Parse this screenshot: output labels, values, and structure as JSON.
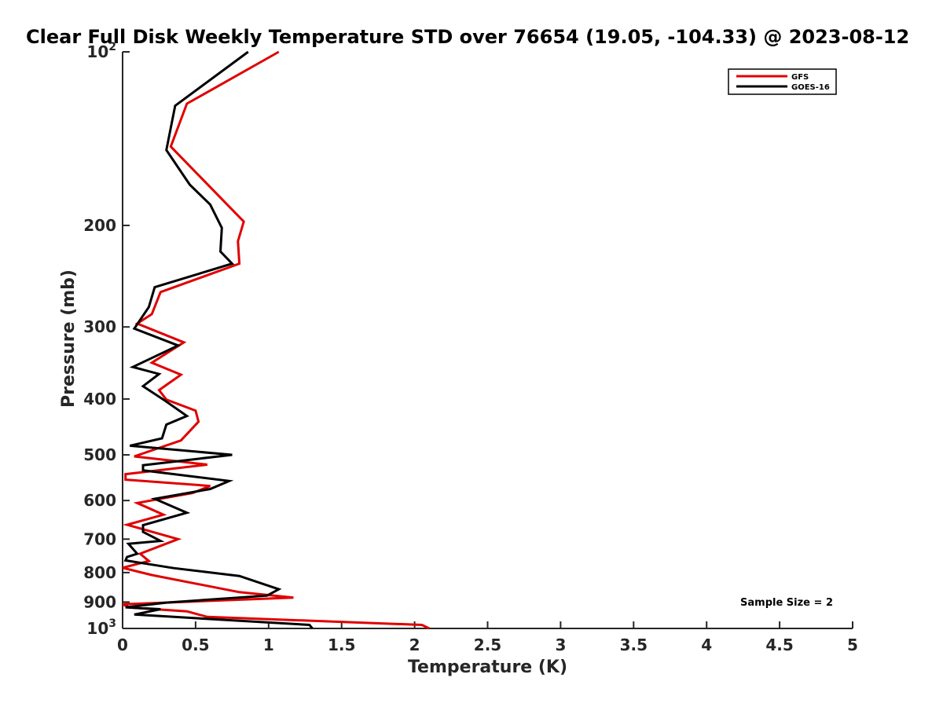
{
  "chart_data": {
    "type": "line",
    "title": "Clear Full Disk Weekly Temperature STD over 76654 (19.05, -104.33) @ 2023-08-12",
    "xlabel": "Temperature (K)",
    "ylabel": "Pressure (mb)",
    "xlim": [
      0,
      5
    ],
    "ylim": [
      100,
      1000
    ],
    "yscale": "log",
    "y_reversed": true,
    "grid": false,
    "legend_position": "top-right",
    "x_ticks": [
      "0",
      "0.5",
      "1",
      "1.5",
      "2",
      "2.5",
      "3",
      "3.5",
      "4",
      "4.5",
      "5"
    ],
    "y_ticks": [
      {
        "value": 100,
        "base": "10",
        "exp": "2"
      },
      {
        "value": 200,
        "label": "200"
      },
      {
        "value": 300,
        "label": "300"
      },
      {
        "value": 400,
        "label": "400"
      },
      {
        "value": 500,
        "label": "500"
      },
      {
        "value": 600,
        "label": "600"
      },
      {
        "value": 700,
        "label": "700"
      },
      {
        "value": 800,
        "label": "800"
      },
      {
        "value": 900,
        "label": "900"
      },
      {
        "value": 1000,
        "base": "10",
        "exp": "3"
      }
    ],
    "annotation": "Sample Size = 2",
    "series": [
      {
        "name": "GFS",
        "color": "#e00000",
        "x": [
          1.07,
          0.44,
          0.33,
          0.83,
          0.79,
          0.8,
          0.26,
          0.2,
          0.1,
          0.42,
          0.2,
          0.4,
          0.25,
          0.3,
          0.5,
          0.52,
          0.4,
          0.08,
          0.58,
          0.02,
          0.02,
          0.6,
          0.48,
          0.1,
          0.28,
          0.03,
          0.38,
          0.12,
          0.18,
          0.0,
          0.2,
          0.8,
          1.17,
          0.0,
          0.05,
          0.44,
          0.58,
          2.05,
          2.1
        ],
        "y": [
          100,
          123,
          146,
          197,
          213,
          233,
          261,
          285,
          296,
          319,
          346,
          363,
          386,
          401,
          419,
          438,
          472,
          503,
          520,
          540,
          552,
          566,
          582,
          606,
          635,
          661,
          700,
          742,
          764,
          785,
          808,
          865,
          884,
          908,
          920,
          934,
          955,
          986,
          1000
        ]
      },
      {
        "name": "GOES-16",
        "color": "#000000",
        "x": [
          0.86,
          0.36,
          0.3,
          0.46,
          0.6,
          0.68,
          0.67,
          0.75,
          0.22,
          0.18,
          0.08,
          0.38,
          0.07,
          0.25,
          0.14,
          0.28,
          0.44,
          0.3,
          0.27,
          0.05,
          0.75,
          0.14,
          0.14,
          0.73,
          0.6,
          0.22,
          0.44,
          0.14,
          0.14,
          0.26,
          0.04,
          0.1,
          0.03,
          0.02,
          0.13,
          0.35,
          0.8,
          1.07,
          0.99,
          0.3,
          0.02,
          0.26,
          0.08,
          1.28,
          1.3
        ],
        "y": [
          100,
          124,
          148,
          170,
          184,
          202,
          222,
          233,
          256,
          277,
          302,
          323,
          352,
          362,
          380,
          401,
          428,
          443,
          468,
          482,
          500,
          521,
          532,
          555,
          573,
          596,
          630,
          662,
          680,
          705,
          713,
          742,
          752,
          762,
          770,
          786,
          811,
          855,
          877,
          902,
          919,
          926,
          946,
          986,
          1000
        ]
      }
    ]
  }
}
